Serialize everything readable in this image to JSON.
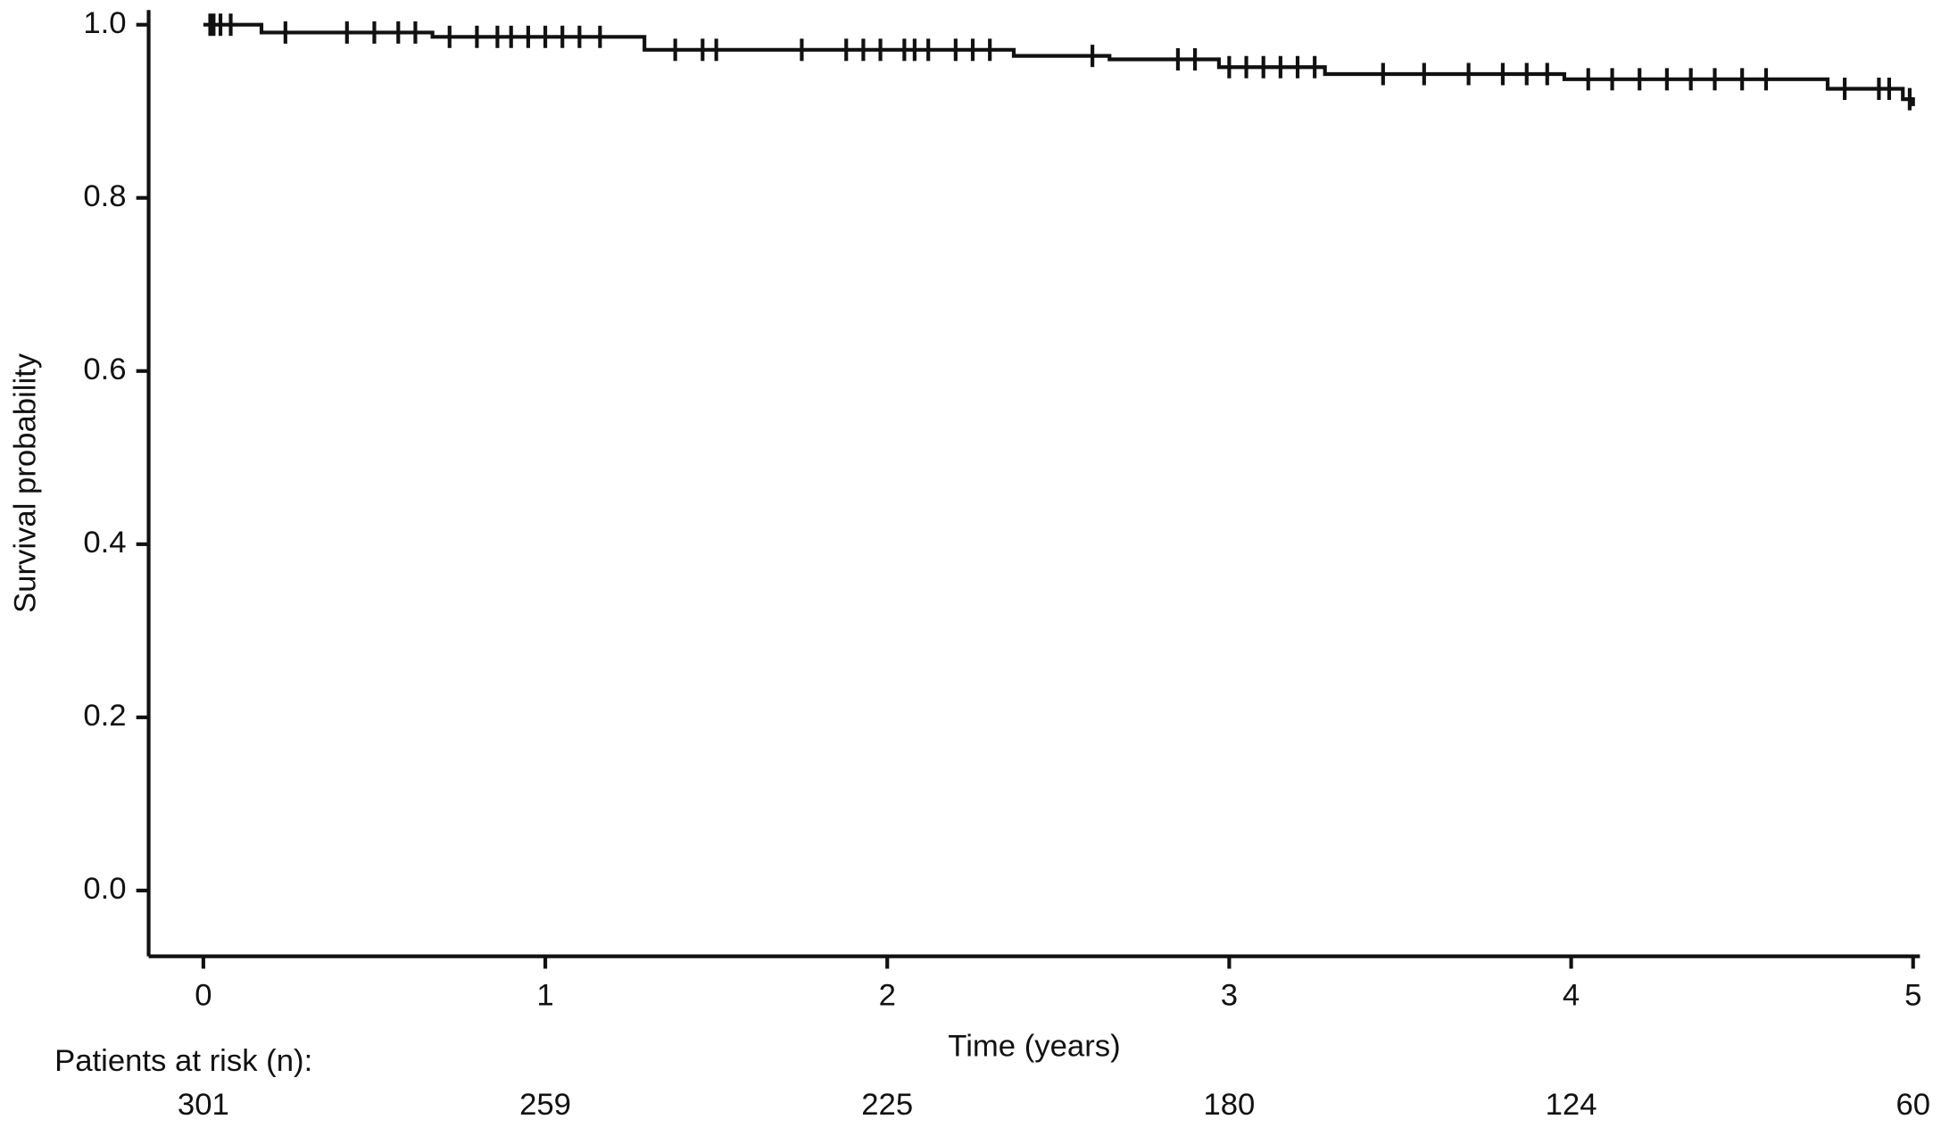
{
  "chart_data": {
    "type": "line",
    "xlabel": "Time (years)",
    "ylabel": "Survival probability",
    "xlim": [
      -0.16,
      5.02
    ],
    "ylim": [
      -0.076,
      1.017
    ],
    "xticks": [
      0,
      1,
      2,
      3,
      4,
      5
    ],
    "yticks": [
      {
        "value": 0,
        "label": "0.0"
      },
      0.2,
      0.4,
      0.6,
      0.8,
      {
        "value": 1,
        "label": "1.0"
      }
    ],
    "series": [
      {
        "color": "#111111",
        "x": [
          0,
          0.17,
          0.67,
          1.29,
          2.37,
          2.65,
          2.97,
          3.28,
          3.98,
          4.75,
          4.97,
          5.0
        ],
        "values": [
          1,
          0.991,
          0.986,
          0.971,
          0.964,
          0.96,
          0.951,
          0.943,
          0.937,
          0.926,
          0.914,
          0.906
        ]
      }
    ],
    "censored": {
      "color": "#111111",
      "x": [
        0.02,
        0.03,
        0.05,
        0.08,
        0.24,
        0.42,
        0.5,
        0.57,
        0.62,
        0.72,
        0.8,
        0.86,
        0.9,
        0.95,
        1.0,
        1.05,
        1.1,
        1.16,
        1.38,
        1.46,
        1.5,
        1.75,
        1.88,
        1.93,
        1.98,
        2.05,
        2.08,
        2.12,
        2.2,
        2.25,
        2.3,
        2.6,
        2.85,
        2.9,
        3.0,
        3.05,
        3.1,
        3.15,
        3.2,
        3.25,
        3.45,
        3.57,
        3.7,
        3.8,
        3.87,
        3.93,
        4.05,
        4.12,
        4.2,
        4.28,
        4.35,
        4.42,
        4.5,
        4.57,
        4.8,
        4.9,
        4.93,
        4.99
      ],
      "values": [
        1,
        1,
        1,
        1,
        0.991,
        0.991,
        0.991,
        0.991,
        0.991,
        0.986,
        0.986,
        0.986,
        0.986,
        0.986,
        0.986,
        0.986,
        0.986,
        0.986,
        0.971,
        0.971,
        0.971,
        0.971,
        0.971,
        0.971,
        0.971,
        0.971,
        0.971,
        0.971,
        0.971,
        0.971,
        0.971,
        0.964,
        0.96,
        0.96,
        0.951,
        0.951,
        0.951,
        0.951,
        0.951,
        0.951,
        0.943,
        0.943,
        0.943,
        0.943,
        0.943,
        0.943,
        0.937,
        0.937,
        0.937,
        0.937,
        0.937,
        0.937,
        0.937,
        0.937,
        0.926,
        0.926,
        0.926,
        0.914
      ]
    },
    "risk_table": {
      "label": "Patients at risk (n):",
      "values": [
        301,
        259,
        225,
        180,
        124,
        60
      ]
    }
  }
}
